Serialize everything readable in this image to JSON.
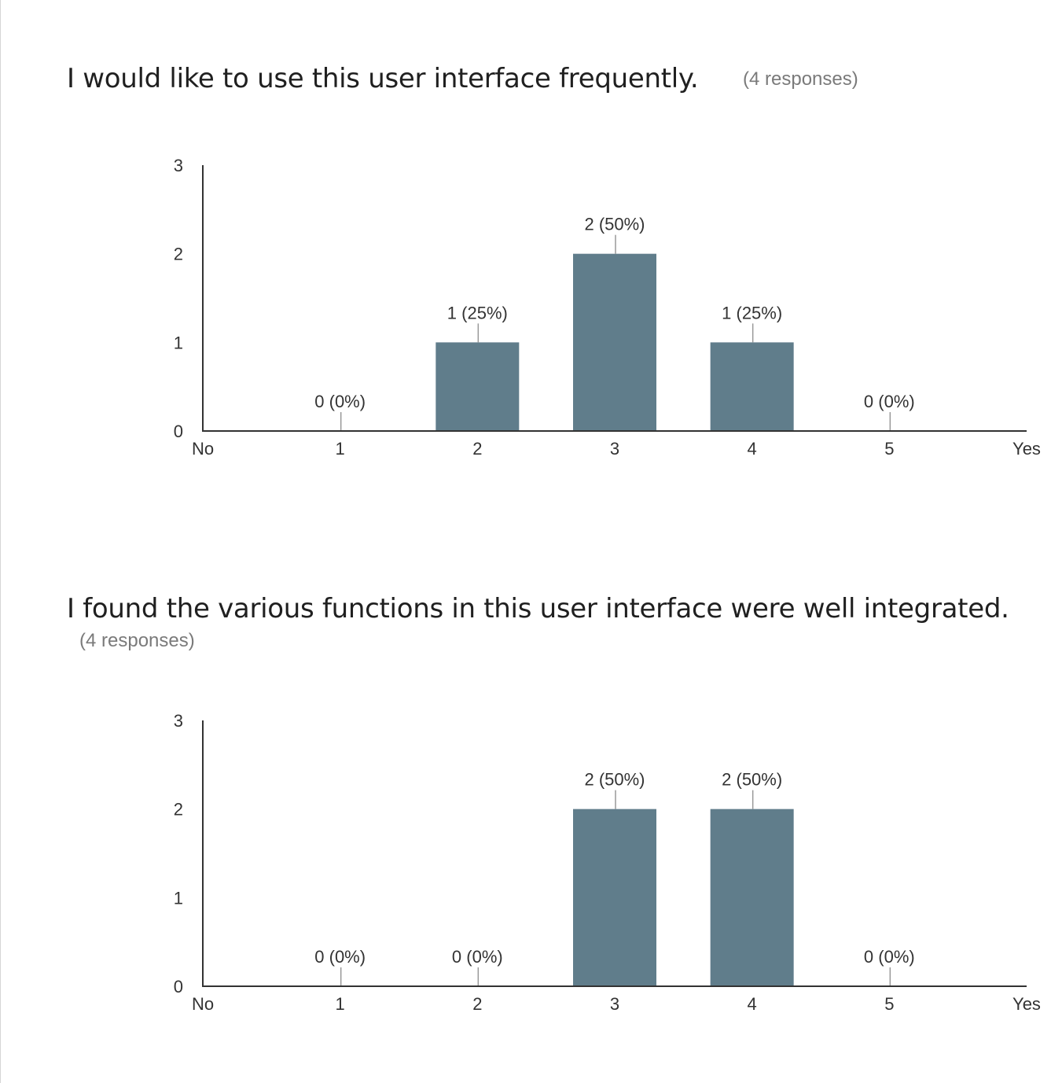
{
  "questions": [
    {
      "title": "I would like to use this user interface frequently.",
      "response_count": "(4 responses)",
      "chart_data": {
        "type": "bar",
        "categories": [
          "1",
          "2",
          "3",
          "4",
          "5"
        ],
        "axis_end_labels": [
          "No",
          "Yes"
        ],
        "values": [
          0,
          1,
          2,
          1,
          0
        ],
        "data_labels": [
          "0 (0%)",
          "1 (25%)",
          "2 (50%)",
          "1 (25%)",
          "0 (0%)"
        ],
        "y_ticks": [
          "0",
          "1",
          "2",
          "3"
        ],
        "ylim": [
          0,
          3
        ],
        "bar_color": "#607d8b"
      }
    },
    {
      "title": "I found the various functions in this user interface were well integrated.",
      "response_count": "(4 responses)",
      "chart_data": {
        "type": "bar",
        "categories": [
          "1",
          "2",
          "3",
          "4",
          "5"
        ],
        "axis_end_labels": [
          "No",
          "Yes"
        ],
        "values": [
          0,
          0,
          2,
          2,
          0
        ],
        "data_labels": [
          "0 (0%)",
          "0 (0%)",
          "2 (50%)",
          "2 (50%)",
          "0 (0%)"
        ],
        "y_ticks": [
          "0",
          "1",
          "2",
          "3"
        ],
        "ylim": [
          0,
          3
        ],
        "bar_color": "#607d8b"
      }
    }
  ]
}
